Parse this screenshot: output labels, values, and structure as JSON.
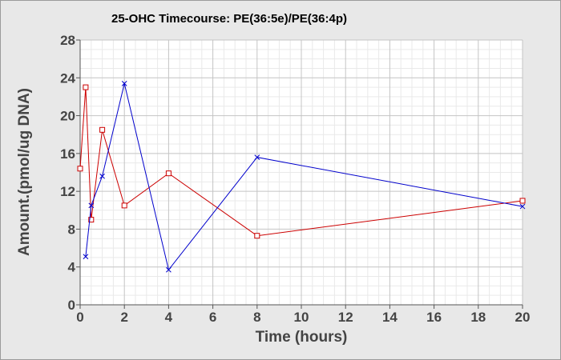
{
  "chart_data": {
    "type": "line",
    "title": "25-OHC Timecourse: PE(36:5e)/PE(36:4p)",
    "xlabel": "Time (hours)",
    "ylabel": "Amount.(pmol/ug DNA)",
    "xlim": [
      0,
      20
    ],
    "ylim": [
      0,
      28
    ],
    "x_ticks": [
      0,
      2,
      4,
      6,
      8,
      10,
      12,
      14,
      16,
      18,
      20
    ],
    "y_ticks": [
      0,
      4,
      8,
      12,
      16,
      20,
      24,
      28
    ],
    "grid": true,
    "legend": "none",
    "series": [
      {
        "color": "#cc0000",
        "marker": "square",
        "points": [
          [
            0,
            14.4
          ],
          [
            0.25,
            23.0
          ],
          [
            0.5,
            9.0
          ],
          [
            1,
            18.5
          ],
          [
            2,
            10.5
          ],
          [
            4,
            13.9
          ],
          [
            8,
            7.3
          ],
          [
            20,
            11.0
          ]
        ]
      },
      {
        "color": "#0000cc",
        "marker": "x",
        "points": [
          [
            0.25,
            5.1
          ],
          [
            0.5,
            10.5
          ],
          [
            1,
            13.6
          ],
          [
            2,
            23.4
          ],
          [
            4,
            3.7
          ],
          [
            8,
            15.6
          ],
          [
            20,
            10.4
          ]
        ]
      }
    ]
  }
}
